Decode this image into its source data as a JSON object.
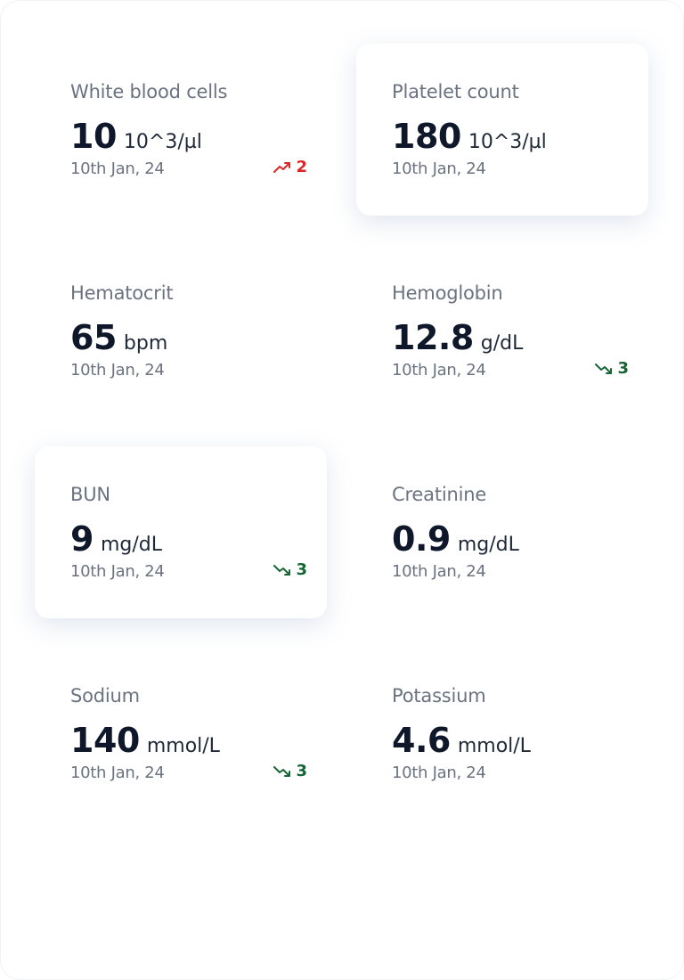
{
  "cards": [
    {
      "label": "White blood cells",
      "value": 10,
      "unit": "10^3/µl",
      "date": "10th Jan, 24",
      "trend": {
        "direction": "up",
        "value": 2
      },
      "elevated": false
    },
    {
      "label": "Platelet count",
      "value": 180,
      "unit": "10^3/µl",
      "date": "10th Jan, 24",
      "elevated": true
    },
    {
      "label": "Hematocrit",
      "value": 65,
      "unit": "bpm",
      "date": "10th Jan, 24",
      "elevated": false
    },
    {
      "label": "Hemoglobin",
      "value": 12.8,
      "unit": "g/dL",
      "date": "10th Jan, 24",
      "trend": {
        "direction": "down",
        "value": 3
      },
      "elevated": false
    },
    {
      "label": "BUN",
      "value": 9,
      "unit": "mg/dL",
      "date": "10th Jan, 24",
      "trend": {
        "direction": "down",
        "value": 3
      },
      "elevated": true
    },
    {
      "label": "Creatinine",
      "value": 0.9,
      "unit": "mg/dL",
      "date": "10th Jan, 24",
      "elevated": false
    },
    {
      "label": "Sodium",
      "value": 140,
      "unit": "mmol/L",
      "date": "10th Jan, 24",
      "trend": {
        "direction": "down",
        "value": 3
      },
      "elevated": false
    },
    {
      "label": "Potassium",
      "value": 4.6,
      "unit": "mmol/L",
      "date": "10th Jan, 24",
      "elevated": false
    }
  ]
}
